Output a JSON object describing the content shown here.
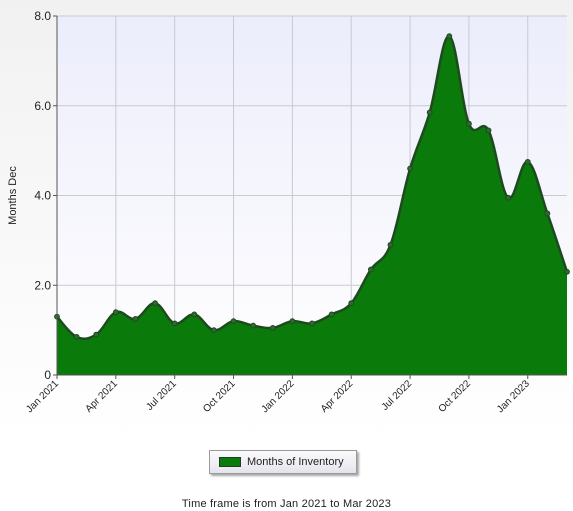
{
  "chart_data": {
    "type": "area",
    "xlabel": "",
    "ylabel": "Months Dec",
    "ylim": [
      0,
      8
    ],
    "yticks": [
      "0",
      "2.0",
      "4.0",
      "6.0",
      "8.0"
    ],
    "xtick_labels": [
      "Jan 2021",
      "Apr 2021",
      "Jul 2021",
      "Oct 2021",
      "Jan 2022",
      "Apr 2022",
      "Jul 2022",
      "Oct 2022",
      "Jan 2023"
    ],
    "grid": true,
    "legend_position": "bottom",
    "series": [
      {
        "name": "Months of Inventory",
        "color": "#0a7a0a",
        "x": [
          "Jan 2021",
          "Feb 2021",
          "Mar 2021",
          "Apr 2021",
          "May 2021",
          "Jun 2021",
          "Jul 2021",
          "Aug 2021",
          "Sep 2021",
          "Oct 2021",
          "Nov 2021",
          "Dec 2021",
          "Jan 2022",
          "Feb 2022",
          "Mar 2022",
          "Apr 2022",
          "May 2022",
          "Jun 2022",
          "Jul 2022",
          "Aug 2022",
          "Sep 2022",
          "Oct 2022",
          "Nov 2022",
          "Dec 2022",
          "Jan 2023",
          "Feb 2023",
          "Mar 2023"
        ],
        "values": [
          1.3,
          0.85,
          0.9,
          1.4,
          1.25,
          1.6,
          1.15,
          1.35,
          1.0,
          1.2,
          1.1,
          1.05,
          1.2,
          1.15,
          1.35,
          1.6,
          2.35,
          2.9,
          4.6,
          5.85,
          7.55,
          5.6,
          5.45,
          3.95,
          4.75,
          3.6,
          2.3
        ]
      }
    ]
  },
  "footer": {
    "timeframe_text": "Time frame is from Jan 2021 to Mar 2023"
  }
}
